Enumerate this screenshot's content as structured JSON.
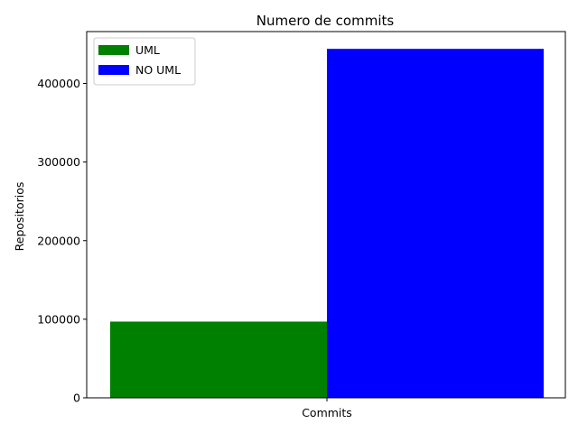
{
  "chart_data": {
    "type": "bar",
    "title": "Numero de commits",
    "xlabel": "",
    "ylabel": "Repositorios",
    "categories": [
      "Commits"
    ],
    "series": [
      {
        "name": "UML",
        "values": [
          97000
        ],
        "color": "#008000"
      },
      {
        "name": "NO UML",
        "values": [
          444000
        ],
        "color": "#0000ff"
      }
    ],
    "ylim": [
      0,
      466000
    ],
    "yticks": [
      0,
      100000,
      200000,
      300000,
      400000
    ],
    "ytick_labels": [
      "0",
      "100000",
      "200000",
      "300000",
      "400000"
    ],
    "legend_position": "top-left",
    "grid": false
  }
}
